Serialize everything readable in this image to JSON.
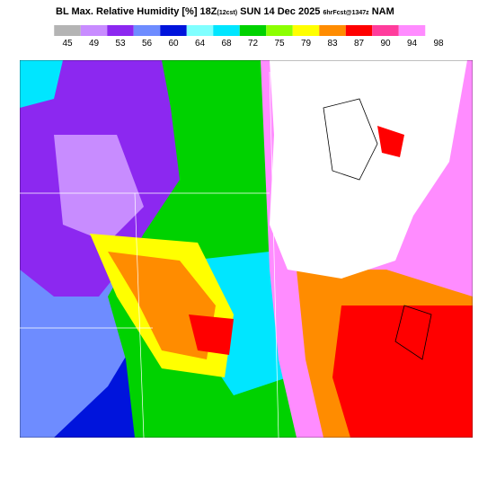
{
  "header": {
    "title_parts": [
      "BL Max. Relative Humidity [%] 18Z",
      "(12cst)",
      " SUN 14 Dec 2025 ",
      "6hrFcst@1347z",
      " NAM"
    ]
  },
  "legend": {
    "labels": [
      "45",
      "49",
      "53",
      "56",
      "60",
      "64",
      "68",
      "72",
      "75",
      "79",
      "83",
      "87",
      "90",
      "94",
      "98"
    ],
    "colors": [
      "#b4b4b4",
      "#c88cff",
      "#8c28f0",
      "#6e8cff",
      "#0014dc",
      "#80ffff",
      "#00e6ff",
      "#00d200",
      "#8cff00",
      "#ffff00",
      "#ff8c00",
      "#ff0000",
      "#ff3c9c",
      "#ff8cff"
    ]
  }
}
